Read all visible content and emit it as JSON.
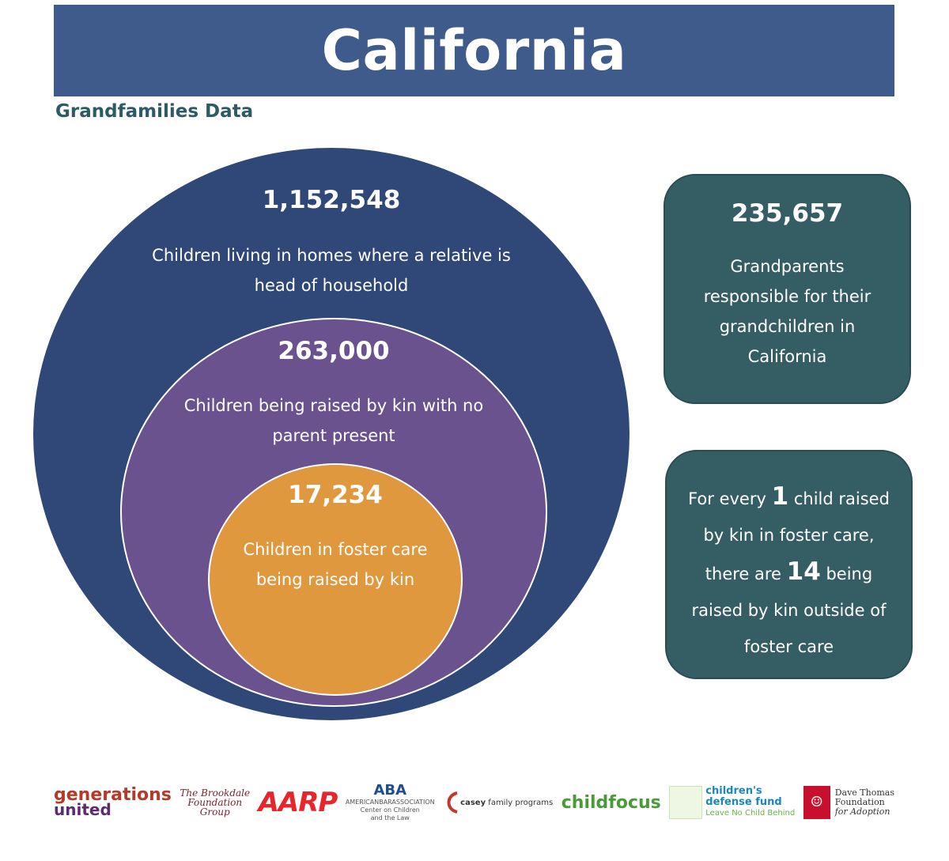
{
  "header": {
    "title": "California"
  },
  "subtitle": "Grandfamilies Data",
  "circles": {
    "outer": {
      "number": "1,152,548",
      "lines": [
        "Children living in homes where a relative is",
        "head of household"
      ]
    },
    "middle": {
      "number": "263,000",
      "lines": [
        "Children being raised by kin with no",
        "parent present"
      ]
    },
    "inner": {
      "number": "17,234",
      "lines": [
        "Children in foster care",
        "being raised by kin"
      ]
    }
  },
  "box1": {
    "number": "235,657",
    "lines": [
      "Grandparents",
      "responsible for their",
      "grandchildren in",
      "California"
    ]
  },
  "box2": {
    "line1_pre": "For every ",
    "line1_num": "1",
    "line1_post": " child raised",
    "line2": "by kin in foster care,",
    "line3_pre": "there are ",
    "line3_num": "14",
    "line3_post": " being",
    "line4": "raised by kin outside of",
    "line5": "foster care"
  },
  "logos": {
    "generations_united": [
      "generations",
      "united"
    ],
    "brookdale": [
      "The Brookdale",
      "Foundation",
      "Group"
    ],
    "aarp": "AARP",
    "aba": [
      "ABA",
      "AMERICANBARASSOCIATION",
      "Center on Children",
      "and the Law"
    ],
    "casey": [
      "casey",
      "family programs"
    ],
    "childfocus": "childfocus",
    "cdf": [
      "children's",
      "defense fund",
      "Leave No Child Behind"
    ],
    "dave_thomas": [
      "Dave Thomas",
      "Foundation",
      "for Adoption"
    ]
  },
  "colors": {
    "banner": "#3f5b8c",
    "outer": "#2f4878",
    "middle": "#6a528f",
    "inner": "#e0983f",
    "box": "#355e64"
  }
}
